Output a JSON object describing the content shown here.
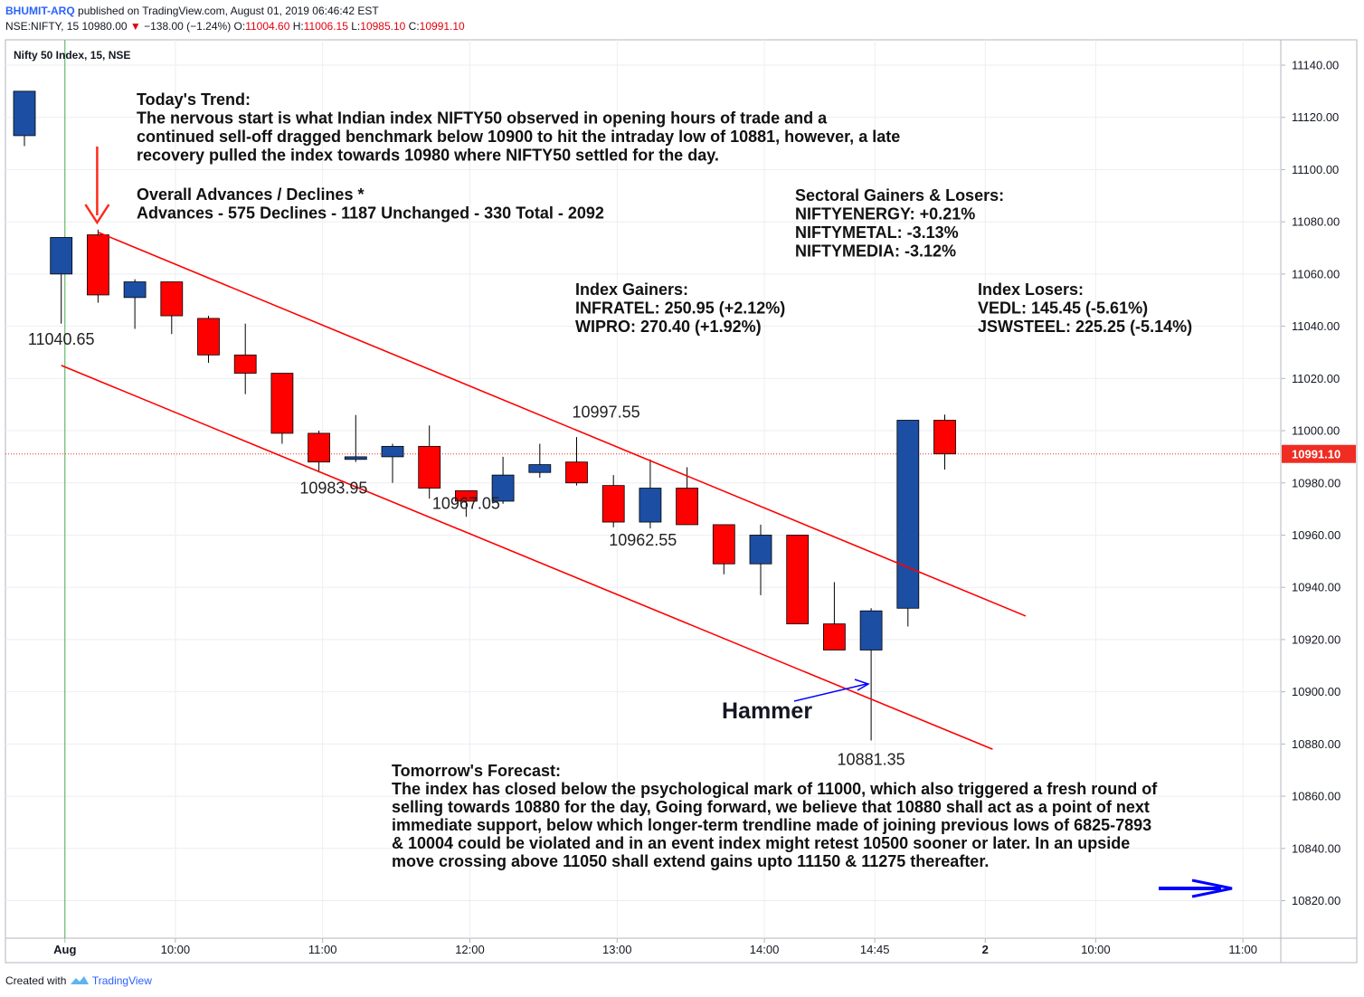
{
  "header": {
    "user": "BHUMIT-ARQ",
    "published": "published on TradingView.com, August 01, 2019 06:46:42 EST",
    "symbol": "NSE:NIFTY, 15",
    "last": "10980.00",
    "change": "−138.00 (−1.24%)",
    "o_label": "O:",
    "o": "11004.60",
    "h_label": "H:",
    "h": "11006.15",
    "l_label": "L:",
    "l": "10985.10",
    "c_label": "C:",
    "c": "10991.10"
  },
  "footer": {
    "created_with": "Created with",
    "brand": "TradingView"
  },
  "colors": {
    "up": "#1c4fa3",
    "down": "#ff0000",
    "channel": "#ff0000",
    "annotation_arrow": "#0000ff",
    "price_badge": "#ef2d23"
  },
  "icons": {
    "down_arrow": "red-down-arrow-icon",
    "hammer_arrow": "blue-arrow-icon",
    "forward_arrow": "blue-right-arrow-icon",
    "logo": "tradingview-logo-icon"
  },
  "chart_data": {
    "type": "candlestick",
    "title": "Nifty 50 Index, 15, NSE",
    "ylim": [
      10810,
      11148
    ],
    "yticks": [
      11140,
      11120,
      11100,
      11080,
      11060,
      11040,
      11020,
      11000,
      10980,
      10960,
      10940,
      10920,
      10900,
      10880,
      10860,
      10840,
      10820
    ],
    "ytick_labels": [
      "11140.00",
      "11120.00",
      "11100.00",
      "11080.00",
      "11060.00",
      "11040.00",
      "11020.00",
      "11000.00",
      "10980.00",
      "10960.00",
      "10940.00",
      "10920.00",
      "10900.00",
      "10880.00",
      "10860.00",
      "10840.00",
      "10820.00"
    ],
    "xticks": [
      {
        "label": "Aug",
        "slot": 1.1,
        "bold": true
      },
      {
        "label": "10:00",
        "slot": 4.1
      },
      {
        "label": "11:00",
        "slot": 8.1
      },
      {
        "label": "12:00",
        "slot": 12.1
      },
      {
        "label": "13:00",
        "slot": 16.1
      },
      {
        "label": "14:00",
        "slot": 20.1
      },
      {
        "label": "14:45",
        "slot": 23.1
      },
      {
        "label": "2",
        "slot": 26.1,
        "bold": true
      },
      {
        "label": "10:00",
        "slot": 29.1
      },
      {
        "label": "11:00",
        "slot": 33.1
      }
    ],
    "x_grid_slots": [
      1.1,
      4.1,
      8.1,
      12.1,
      16.1,
      20.1,
      23.1,
      26.1,
      29.1,
      33.1
    ],
    "session_start_slot": 1.1,
    "candles": [
      {
        "slot": 0,
        "o": 11113,
        "h": 11130,
        "l": 11109,
        "c": 11130
      },
      {
        "slot": 1,
        "o": 11060,
        "h": 11074,
        "l": 11041,
        "c": 11074
      },
      {
        "slot": 2,
        "o": 11075,
        "h": 11077,
        "l": 11049,
        "c": 11052
      },
      {
        "slot": 3,
        "o": 11051,
        "h": 11058,
        "l": 11039,
        "c": 11057
      },
      {
        "slot": 4,
        "o": 11057,
        "h": 11057,
        "l": 11037,
        "c": 11044
      },
      {
        "slot": 5,
        "o": 11043,
        "h": 11044,
        "l": 11026,
        "c": 11029
      },
      {
        "slot": 6,
        "o": 11029,
        "h": 11041,
        "l": 11014,
        "c": 11022
      },
      {
        "slot": 7,
        "o": 11022,
        "h": 11022,
        "l": 10995,
        "c": 10999
      },
      {
        "slot": 8,
        "o": 10999,
        "h": 11000,
        "l": 10984,
        "c": 10988
      },
      {
        "slot": 9,
        "o": 10989,
        "h": 11006,
        "l": 10988,
        "c": 10990
      },
      {
        "slot": 10,
        "o": 10990,
        "h": 10995,
        "l": 10980,
        "c": 10994
      },
      {
        "slot": 11,
        "o": 10994,
        "h": 11002,
        "l": 10974,
        "c": 10978
      },
      {
        "slot": 12,
        "o": 10977,
        "h": 10977,
        "l": 10967,
        "c": 10973
      },
      {
        "slot": 13,
        "o": 10973,
        "h": 10990,
        "l": 10972,
        "c": 10983
      },
      {
        "slot": 14,
        "o": 10984,
        "h": 10995,
        "l": 10982,
        "c": 10987
      },
      {
        "slot": 15,
        "o": 10988,
        "h": 10997.55,
        "l": 10979,
        "c": 10980
      },
      {
        "slot": 16,
        "o": 10979,
        "h": 10983,
        "l": 10963,
        "c": 10965
      },
      {
        "slot": 17,
        "o": 10965,
        "h": 10989,
        "l": 10962.55,
        "c": 10978
      },
      {
        "slot": 18,
        "o": 10978,
        "h": 10986,
        "l": 10964,
        "c": 10964
      },
      {
        "slot": 19,
        "o": 10964,
        "h": 10964,
        "l": 10945,
        "c": 10949
      },
      {
        "slot": 20,
        "o": 10949,
        "h": 10964,
        "l": 10937,
        "c": 10960
      },
      {
        "slot": 21,
        "o": 10960,
        "h": 10960,
        "l": 10926,
        "c": 10926
      },
      {
        "slot": 22,
        "o": 10926,
        "h": 10942,
        "l": 10916,
        "c": 10916
      },
      {
        "slot": 23,
        "o": 10916,
        "h": 10932,
        "l": 10881.35,
        "c": 10931
      },
      {
        "slot": 24,
        "o": 10932,
        "h": 11004,
        "l": 10925,
        "c": 11004
      },
      {
        "slot": 25,
        "o": 11004,
        "h": 11006.15,
        "l": 10985.1,
        "c": 10991.1
      }
    ],
    "price_labels": [
      {
        "text": "11040.65",
        "slot": 1,
        "price": 11033
      },
      {
        "text": "10983.95",
        "slot": 8.4,
        "price": 10976
      },
      {
        "text": "10967.05",
        "slot": 12,
        "price": 10970
      },
      {
        "text": "10997.55",
        "slot": 15.8,
        "price": 11005
      },
      {
        "text": "10962.55",
        "slot": 16.8,
        "price": 10956
      },
      {
        "text": "10881.35",
        "slot": 23,
        "price": 10872
      }
    ],
    "channel_upper": [
      [
        2,
        11076
      ],
      [
        27.2,
        10929
      ]
    ],
    "channel_lower": [
      [
        1,
        11025
      ],
      [
        26.3,
        10878
      ]
    ],
    "current_price": 10991.1,
    "current_price_label": "10991.10",
    "annotations": {
      "trend_title": "Today's Trend:",
      "trend_lines": [
        "The nervous start is what Indian index NIFTY50 observed in opening hours of trade and a",
        "continued sell-off dragged benchmark below 10900 to hit the intraday low of 10881, however, a late",
        "recovery pulled the index towards 10980 where NIFTY50 settled for the day."
      ],
      "adv_title": "Overall Advances / Declines *",
      "adv_line": "Advances - 575 Declines - 1187 Unchanged - 330 Total - 2092",
      "sectoral_title": "Sectoral Gainers & Losers:",
      "sectoral_lines": [
        "NIFTYENERGY: +0.21%",
        "NIFTYMETAL: -3.13%",
        "NIFTYMEDIA: -3.12%"
      ],
      "gainers_title": "Index Gainers:",
      "gainers_lines": [
        "INFRATEL: 250.95 (+2.12%)",
        "WIPRO: 270.40 (+1.92%)"
      ],
      "losers_title": "Index Losers:",
      "losers_lines": [
        "VEDL: 145.45 (-5.61%)",
        "JSWSTEEL: 225.25 (-5.14%)"
      ],
      "hammer": "Hammer",
      "forecast_title": "Tomorrow's Forecast:",
      "forecast_lines": [
        "The index has closed below the psychological mark of 11000, which also triggered a fresh round of",
        "selling towards 10880 for the day, Going forward, we believe that 10880 shall act as a point of next",
        "immediate support, below which longer-term trendline made of joining previous lows of 6825-7893",
        "& 10004 could be violated and in an event index might retest 10500 sooner or later. In an upside",
        "move crossing above 11050 shall extend gains upto 11150 & 11275 thereafter."
      ]
    }
  }
}
